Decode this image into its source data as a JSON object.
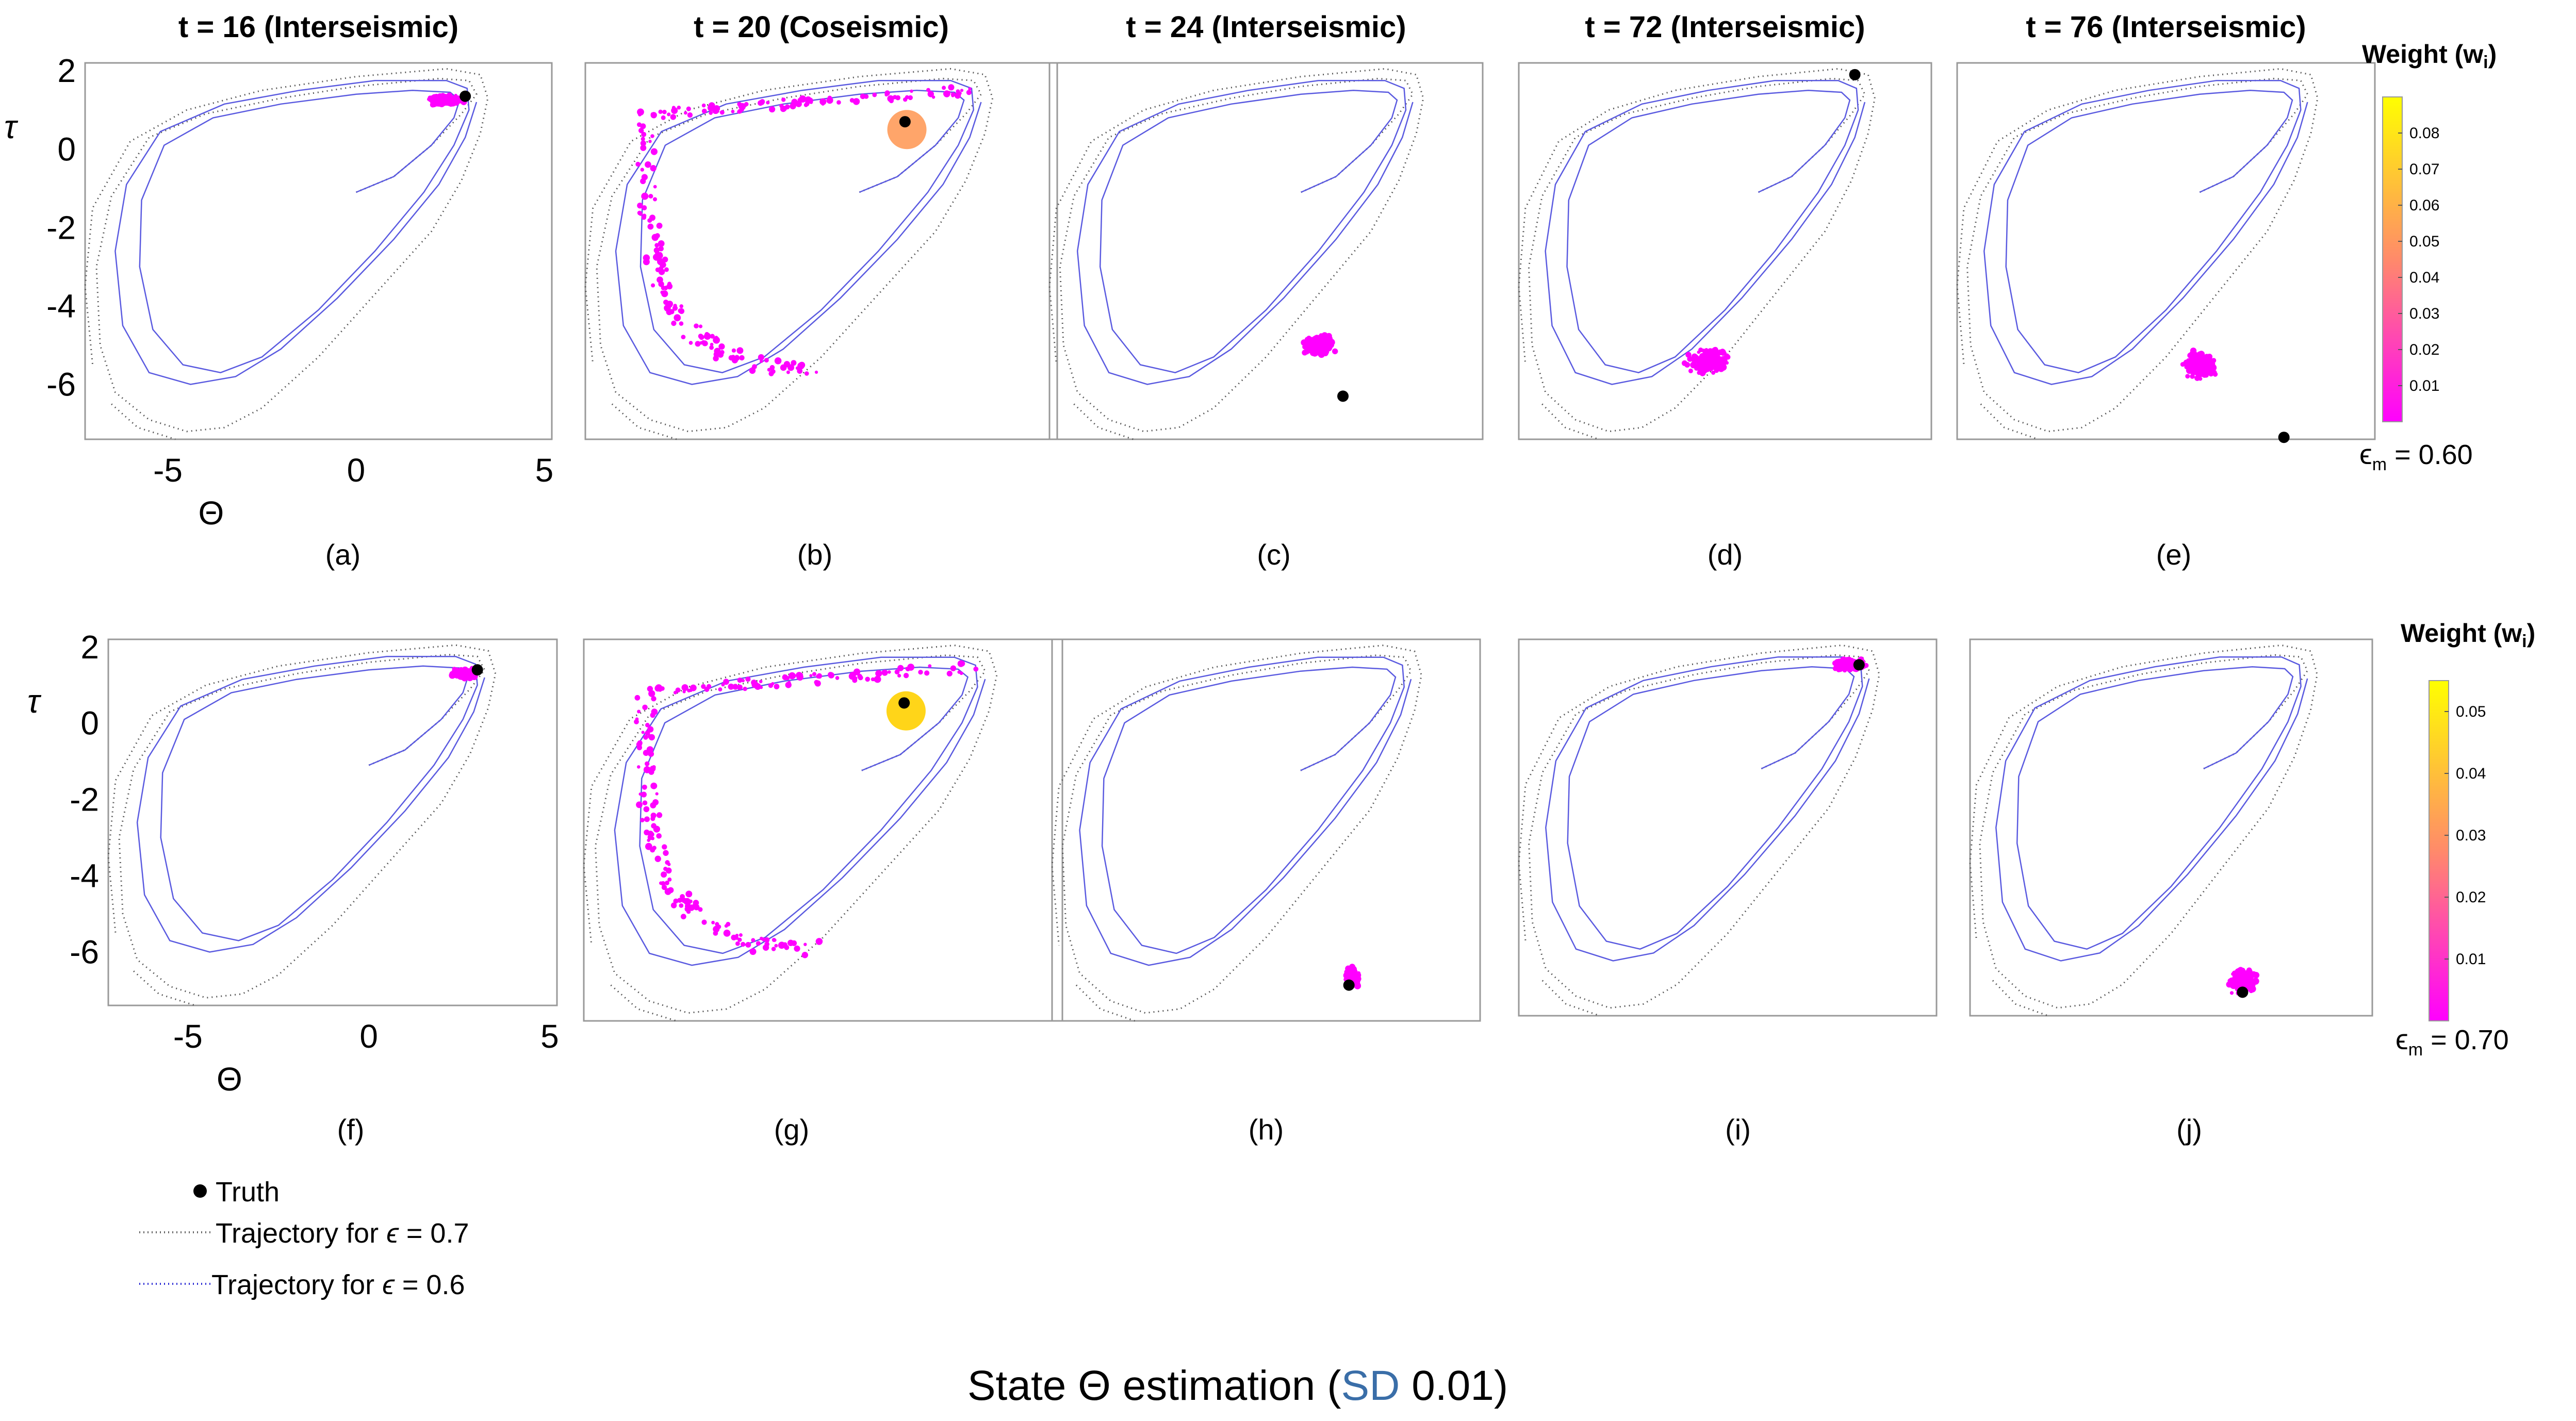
{
  "figure_title_parts": [
    "State ",
    "Θ",
    " estimation (",
    "SD",
    " 0.01)"
  ],
  "colors": {
    "weight_low": "#ff00ff",
    "weight_mid": "#ff9b5a",
    "weight_high": "#ffff00",
    "truth": "#000000",
    "traj_07": "#666666",
    "traj_06": "#2b2bd4",
    "cloud": "#ff00ff"
  },
  "rows": [
    {
      "epsilon_m_label": "ϵ",
      "epsilon_m_sub": "m",
      "epsilon_m_value": " = 0.60",
      "colorbar": {
        "title": "Weight (w",
        "title_sub": "i",
        "title_end": ")",
        "min": 0,
        "max": 0.09,
        "ticks": [
          "0.01",
          "0.02",
          "0.03",
          "0.04",
          "0.05",
          "0.06",
          "0.07",
          "0.08"
        ],
        "tick_values": [
          0.01,
          0.02,
          0.03,
          0.04,
          0.05,
          0.06,
          0.07,
          0.08
        ]
      },
      "panels": [
        {
          "id": "a",
          "title": "t = 16 (Interseismic)",
          "label": "(a)",
          "truth": [
            2.9,
            1.35
          ]
        },
        {
          "id": "b",
          "title": "t = 20 (Coseismic)",
          "label": "(b)",
          "truth": [
            1.2,
            0.7
          ]
        },
        {
          "id": "c",
          "title": "t = 24 (Interseismic)",
          "label": "(c)",
          "truth": [
            1.2,
            -6.3
          ]
        },
        {
          "id": "d",
          "title": "t = 72 (Interseismic)",
          "label": "(d)",
          "truth": [
            2.9,
            1.9
          ]
        },
        {
          "id": "e",
          "title": "t = 76 (Interseismic)",
          "label": "(e)",
          "truth": [
            2.5,
            -7.35
          ]
        }
      ]
    },
    {
      "epsilon_m_label": "ϵ",
      "epsilon_m_sub": "m",
      "epsilon_m_value": " = 0.70",
      "colorbar": {
        "title": "Weight (w",
        "title_sub": "i",
        "title_end": ")",
        "min": 0,
        "max": 0.055,
        "ticks": [
          "0.01",
          "0.02",
          "0.03",
          "0.04",
          "0.05"
        ],
        "tick_values": [
          0.01,
          0.02,
          0.03,
          0.04,
          0.05
        ]
      },
      "panels": [
        {
          "id": "f",
          "title": "",
          "label": "(f)",
          "truth": [
            3.0,
            1.4
          ]
        },
        {
          "id": "g",
          "title": "",
          "label": "(g)",
          "truth": [
            1.1,
            0.6
          ]
        },
        {
          "id": "h",
          "title": "",
          "label": "(h)",
          "truth": [
            1.4,
            -6.5
          ]
        },
        {
          "id": "i",
          "title": "",
          "label": "(i)",
          "truth": [
            2.9,
            1.55
          ]
        },
        {
          "id": "j",
          "title": "",
          "label": "(j)",
          "truth": [
            1.2,
            -6.8
          ]
        }
      ]
    }
  ],
  "legend": {
    "truth": "Truth",
    "traj_07_prefix": "Trajectory for ",
    "traj_07_eps": "ϵ",
    "traj_07_value": " = 0.7",
    "traj_06_prefix": "Trajectory for ",
    "traj_06_eps": "ϵ",
    "traj_06_value": " = 0.6"
  },
  "chart_data": {
    "type": "scatter",
    "title": "State Θ estimation (SD 0.01)",
    "xlabel": "Θ",
    "ylabel": "τ",
    "xlim": [
      -7.2,
      5.2
    ],
    "ylim": [
      -7.4,
      2.2
    ],
    "xticks": [
      "-5",
      "0",
      "5"
    ],
    "xtick_values": [
      -5,
      0,
      5
    ],
    "yticks": [
      "2",
      "0",
      "-2",
      "-4",
      "-6"
    ],
    "ytick_values": [
      2,
      0,
      -2,
      -4,
      -6
    ],
    "series": [
      {
        "name": "Truth",
        "kind": "marker"
      },
      {
        "name": "Trajectory for ϵ = 0.7",
        "kind": "dotted-line"
      },
      {
        "name": "Trajectory for ϵ = 0.6",
        "kind": "line"
      },
      {
        "name": "Particles (colored by weight w_i)",
        "kind": "scatter"
      }
    ],
    "trajectory_07_loops": [
      [
        [
          0,
          -1.1
        ],
        [
          1.0,
          -0.7
        ],
        [
          2.0,
          0.1
        ],
        [
          2.8,
          0.9
        ],
        [
          3.2,
          1.4
        ],
        [
          3.0,
          1.75
        ],
        [
          2.2,
          1.8
        ],
        [
          0,
          1.6
        ],
        [
          -2,
          1.3
        ],
        [
          -4,
          0.9
        ],
        [
          -5.5,
          0.3
        ],
        [
          -6.5,
          -1.2
        ],
        [
          -6.9,
          -3
        ],
        [
          -6.8,
          -5
        ],
        [
          -6.4,
          -6.2
        ],
        [
          -5.5,
          -6.9
        ],
        [
          -4.5,
          -7.2
        ],
        [
          -3.5,
          -7.1
        ],
        [
          -2.5,
          -6.6
        ],
        [
          -1,
          -5.3
        ],
        [
          0.5,
          -3.7
        ],
        [
          2,
          -2.1
        ],
        [
          2.8,
          -0.8
        ],
        [
          3.3,
          0.4
        ],
        [
          3.5,
          1.3
        ],
        [
          3.3,
          1.9
        ],
        [
          2.4,
          2.05
        ],
        [
          0,
          1.85
        ],
        [
          -2.5,
          1.5
        ],
        [
          -4.5,
          1.0
        ],
        [
          -6,
          0.2
        ],
        [
          -7.0,
          -1.5
        ],
        [
          -7.2,
          -3.5
        ],
        [
          -7.0,
          -5.5
        ]
      ],
      [
        [
          -6.5,
          -6.5
        ],
        [
          -5.8,
          -7.1
        ],
        [
          -4.8,
          -7.4
        ]
      ]
    ],
    "trajectory_06_loops": [
      [
        [
          0,
          -1.1
        ],
        [
          1.0,
          -0.7
        ],
        [
          2.0,
          0.1
        ],
        [
          2.6,
          0.8
        ],
        [
          2.75,
          1.25
        ],
        [
          2.5,
          1.45
        ],
        [
          1.5,
          1.5
        ],
        [
          0,
          1.4
        ],
        [
          -2,
          1.15
        ],
        [
          -3.8,
          0.8
        ],
        [
          -5.1,
          0.1
        ],
        [
          -5.7,
          -1.3
        ],
        [
          -5.75,
          -3
        ],
        [
          -5.4,
          -4.6
        ],
        [
          -4.6,
          -5.5
        ],
        [
          -3.6,
          -5.7
        ],
        [
          -2.5,
          -5.3
        ],
        [
          -1,
          -4.1
        ],
        [
          0.5,
          -2.6
        ],
        [
          1.8,
          -1.1
        ],
        [
          2.6,
          0.1
        ],
        [
          3.0,
          1.0
        ],
        [
          2.95,
          1.55
        ],
        [
          2.4,
          1.75
        ],
        [
          0.5,
          1.75
        ],
        [
          -1.5,
          1.5
        ],
        [
          -3.5,
          1.15
        ],
        [
          -5.2,
          0.45
        ],
        [
          -6.1,
          -0.9
        ],
        [
          -6.4,
          -2.6
        ],
        [
          -6.2,
          -4.5
        ],
        [
          -5.5,
          -5.7
        ],
        [
          -4.4,
          -6.0
        ],
        [
          -3.2,
          -5.8
        ],
        [
          -2,
          -5.1
        ],
        [
          -0.5,
          -3.8
        ],
        [
          1,
          -2.3
        ],
        [
          2.2,
          -0.9
        ],
        [
          2.9,
          0.3
        ],
        [
          3.2,
          1.2
        ]
      ]
    ],
    "particle_clouds": [
      {
        "panel": "a",
        "center": [
          2.4,
          1.25
        ],
        "spread": [
          0.6,
          0.15
        ],
        "weight": "low"
      },
      {
        "panel": "b",
        "center": [
          -4.8,
          -2.5
        ],
        "spread": [
          1.5,
          2.5
        ],
        "weight": "low"
      },
      {
        "panel": "c",
        "center": [
          0.5,
          -5.0
        ],
        "spread": [
          0.5,
          0.3
        ],
        "weight": "low"
      },
      {
        "panel": "d",
        "center": [
          -1.5,
          -5.4
        ],
        "spread": [
          0.8,
          0.4
        ],
        "weight": "low"
      },
      {
        "panel": "e",
        "center": [
          0.0,
          -5.5
        ],
        "spread": [
          0.6,
          0.4
        ],
        "weight": "low"
      },
      {
        "panel": "f",
        "center": [
          2.6,
          1.3
        ],
        "spread": [
          0.4,
          0.15
        ],
        "weight": "low"
      },
      {
        "panel": "g",
        "center": [
          -4.5,
          -2.5
        ],
        "spread": [
          1.5,
          3.0
        ],
        "weight": "low"
      },
      {
        "panel": "h",
        "center": [
          1.5,
          -6.3
        ],
        "spread": [
          0.25,
          0.3
        ],
        "weight": "low"
      },
      {
        "panel": "i",
        "center": [
          2.6,
          1.55
        ],
        "spread": [
          0.6,
          0.2
        ],
        "weight": "low"
      },
      {
        "panel": "j",
        "center": [
          1.2,
          -6.5
        ],
        "spread": [
          0.5,
          0.35
        ],
        "weight": "low"
      }
    ]
  }
}
